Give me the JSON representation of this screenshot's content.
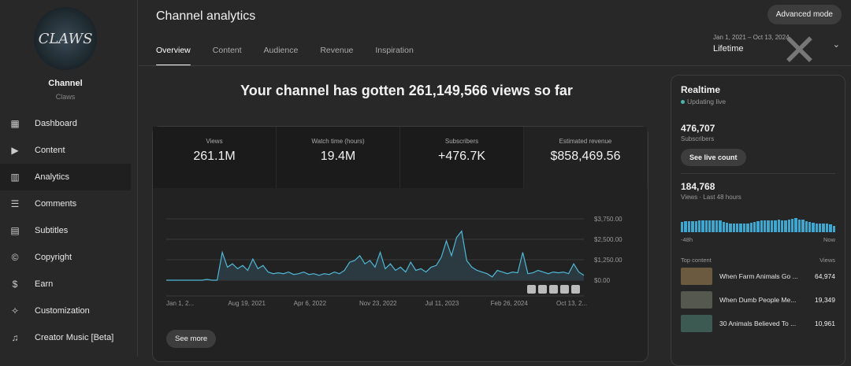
{
  "sidebar": {
    "avatar_text": "CLAWS",
    "channel_label": "Channel",
    "channel_name": "Claws",
    "items": [
      {
        "label": "Dashboard",
        "icon": "dashboard-icon"
      },
      {
        "label": "Content",
        "icon": "content-icon"
      },
      {
        "label": "Analytics",
        "icon": "analytics-icon",
        "active": true
      },
      {
        "label": "Comments",
        "icon": "comments-icon"
      },
      {
        "label": "Subtitles",
        "icon": "subtitles-icon"
      },
      {
        "label": "Copyright",
        "icon": "copyright-icon"
      },
      {
        "label": "Earn",
        "icon": "dollar-icon"
      },
      {
        "label": "Customization",
        "icon": "magic-wand-icon"
      },
      {
        "label": "Creator Music [Beta]",
        "icon": "music-icon"
      }
    ]
  },
  "header": {
    "title": "Channel analytics",
    "tabs": [
      "Overview",
      "Content",
      "Audience",
      "Revenue",
      "Inspiration"
    ],
    "active_tab": "Overview",
    "advanced_mode": "Advanced mode",
    "date_range": "Jan 1, 2021 – Oct 13, 2024",
    "period": "Lifetime"
  },
  "headline": "Your channel has gotten 261,149,566 views so far",
  "metrics": [
    {
      "label": "Views",
      "value": "261.1M"
    },
    {
      "label": "Watch time (hours)",
      "value": "19.4M"
    },
    {
      "label": "Subscribers",
      "value": "+476.7K"
    },
    {
      "label": "Estimated revenue",
      "value": "$858,469.56"
    }
  ],
  "see_more": "See more",
  "chart_data": {
    "type": "area",
    "metric": "Estimated revenue",
    "x_range": [
      "Jan 1, 2021",
      "Oct 13, 2024"
    ],
    "x_ticks": [
      "Jan 1, 2...",
      "Aug 19, 2021",
      "Apr 6, 2022",
      "Nov 23, 2022",
      "Jul 11, 2023",
      "Feb 26, 2024",
      "Oct 13, 2..."
    ],
    "y_ticks": [
      "$0.00",
      "$1,250.00",
      "$2,500.00",
      "$3,750.00"
    ],
    "ylim": [
      0,
      3750
    ],
    "color": "#4fb8d8",
    "values": [
      0,
      0,
      0,
      0,
      0,
      0,
      0,
      0,
      50,
      0,
      0,
      1700,
      800,
      1000,
      700,
      900,
      600,
      1300,
      700,
      900,
      500,
      400,
      450,
      400,
      500,
      350,
      400,
      500,
      350,
      400,
      300,
      400,
      350,
      500,
      400,
      600,
      1100,
      1200,
      1500,
      1000,
      1200,
      800,
      1700,
      700,
      1000,
      600,
      800,
      500,
      1100,
      600,
      700,
      500,
      800,
      900,
      1400,
      2400,
      1500,
      2600,
      3000,
      1200,
      800,
      600,
      500,
      400,
      200,
      600,
      500,
      400,
      500,
      450,
      1700,
      400,
      450,
      600,
      500,
      400,
      500,
      450,
      500,
      400,
      1000,
      500,
      300
    ]
  },
  "realtime": {
    "title": "Realtime",
    "status": "Updating live",
    "subscribers": "476,707",
    "subscribers_label": "Subscribers",
    "live_btn": "See live count",
    "views": "184,768",
    "views_label": "Views · Last 48 hours",
    "axis_start": "-48h",
    "axis_end": "Now",
    "bars": [
      0.6,
      0.62,
      0.63,
      0.65,
      0.65,
      0.66,
      0.66,
      0.67,
      0.68,
      0.7,
      0.7,
      0.66,
      0.6,
      0.55,
      0.52,
      0.5,
      0.5,
      0.5,
      0.5,
      0.52,
      0.55,
      0.6,
      0.65,
      0.66,
      0.67,
      0.68,
      0.7,
      0.7,
      0.72,
      0.7,
      0.7,
      0.72,
      0.78,
      0.8,
      0.75,
      0.72,
      0.65,
      0.6,
      0.55,
      0.5,
      0.5,
      0.48,
      0.48,
      0.45,
      0.35
    ],
    "top_content_label": "Top content",
    "views_col": "Views",
    "top_content": [
      {
        "title": "When Farm Animals Go ...",
        "views": "64,974"
      },
      {
        "title": "When Dumb People Me...",
        "views": "19,349"
      },
      {
        "title": "30 Animals Believed To ...",
        "views": "10,961"
      }
    ]
  }
}
